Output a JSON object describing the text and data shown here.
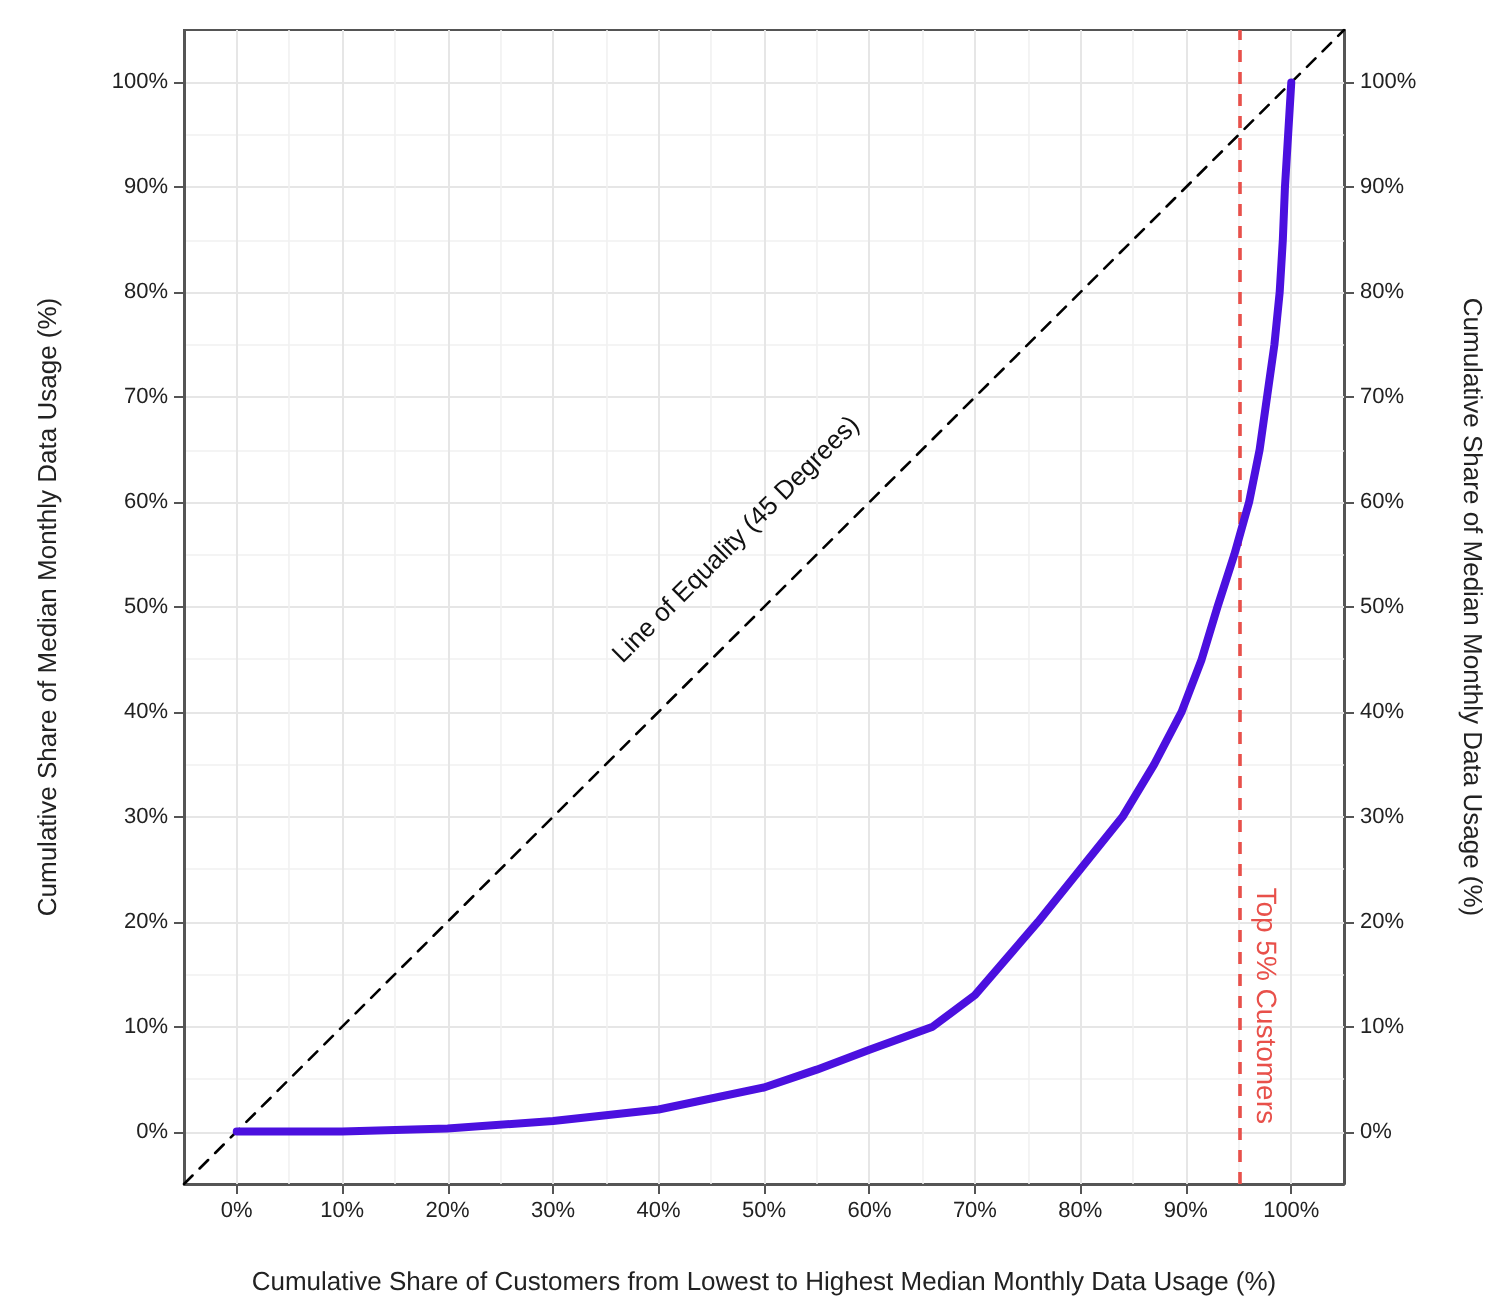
{
  "chart_data": {
    "type": "line",
    "xlabel": "Cumulative Share of Customers from Lowest to Highest Median Monthly Data Usage (%)",
    "ylabel": "Cumulative Share of Median Monthly Data Usage (%)",
    "y2label": "Cumulative Share of Median Monthly Data Usage (%)",
    "series": [
      {
        "color": "#4b10df",
        "x": [
          0,
          10,
          20,
          30,
          40,
          50,
          55,
          60,
          66,
          70,
          76,
          80,
          84,
          87,
          89.6,
          91.5,
          93,
          94.6,
          96,
          97,
          97.7,
          98.4,
          98.9,
          99.2,
          99.4,
          99.7,
          100
        ],
        "values": [
          0,
          0,
          0.3,
          1,
          2.1,
          4.2,
          5.9,
          7.8,
          10,
          13,
          20,
          25,
          30,
          35,
          40,
          45,
          50,
          55,
          60,
          65,
          70,
          75,
          80,
          85,
          90,
          95,
          100
        ]
      },
      {
        "color": "#000000",
        "line_style": "dashed",
        "x": [
          -5,
          105
        ],
        "values": [
          -5,
          105
        ]
      }
    ],
    "annotations": [
      "Line of Equality (45 Degrees)"
    ],
    "ref_lines": [
      {
        "axis": "x",
        "value": 95,
        "label": "Top 5% Customers",
        "color": "#e8504a",
        "line_style": "dashed"
      }
    ],
    "xlim": [
      -5,
      105
    ],
    "ylim": [
      -5,
      105
    ],
    "y2lim": [
      -5,
      105
    ],
    "xticks": [
      {
        "value": 0,
        "label": "0%"
      },
      {
        "value": 10,
        "label": "10%"
      },
      {
        "value": 20,
        "label": "20%"
      },
      {
        "value": 30,
        "label": "30%"
      },
      {
        "value": 40,
        "label": "40%"
      },
      {
        "value": 50,
        "label": "50%"
      },
      {
        "value": 60,
        "label": "60%"
      },
      {
        "value": 70,
        "label": "70%"
      },
      {
        "value": 80,
        "label": "80%"
      },
      {
        "value": 90,
        "label": "90%"
      },
      {
        "value": 100,
        "label": "100%"
      }
    ],
    "yticks": [
      {
        "value": 0,
        "label": "0%"
      },
      {
        "value": 10,
        "label": "10%"
      },
      {
        "value": 20,
        "label": "20%"
      },
      {
        "value": 30,
        "label": "30%"
      },
      {
        "value": 40,
        "label": "40%"
      },
      {
        "value": 50,
        "label": "50%"
      },
      {
        "value": 60,
        "label": "60%"
      },
      {
        "value": 70,
        "label": "70%"
      },
      {
        "value": 80,
        "label": "80%"
      },
      {
        "value": 90,
        "label": "90%"
      },
      {
        "value": 100,
        "label": "100%"
      }
    ],
    "y2ticks": [
      {
        "value": 0,
        "label": "0%"
      },
      {
        "value": 10,
        "label": "10%"
      },
      {
        "value": 20,
        "label": "20%"
      },
      {
        "value": 30,
        "label": "30%"
      },
      {
        "value": 40,
        "label": "40%"
      },
      {
        "value": 50,
        "label": "50%"
      },
      {
        "value": 60,
        "label": "60%"
      },
      {
        "value": 70,
        "label": "70%"
      },
      {
        "value": 80,
        "label": "80%"
      },
      {
        "value": 90,
        "label": "90%"
      },
      {
        "value": 100,
        "label": "100%"
      }
    ],
    "grid": true,
    "marker": "none"
  }
}
